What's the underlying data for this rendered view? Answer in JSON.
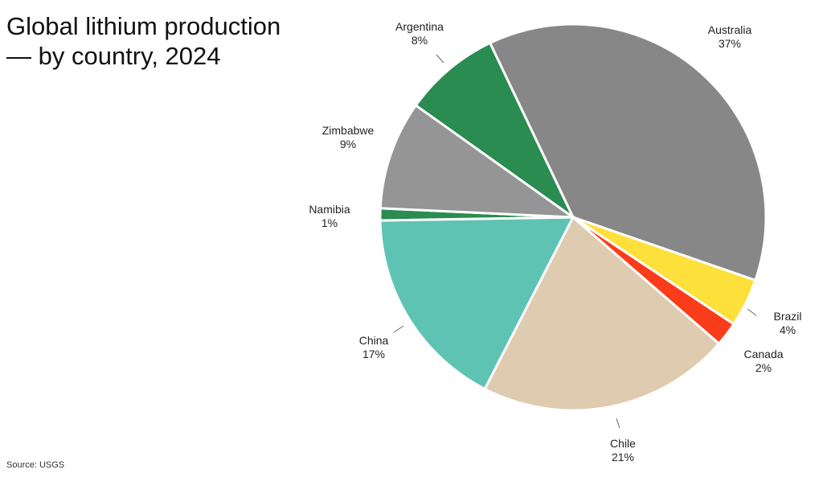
{
  "title_line1": "Global lithium production",
  "title_line2": "— by country, 2024",
  "source": "Source: USGS",
  "chart_data": {
    "type": "pie",
    "title": "Global lithium production — by country, 2024",
    "start_direction": "clockwise",
    "categories": [
      "Australia",
      "Brazil",
      "Canada",
      "Chile",
      "China",
      "Namibia",
      "Zimbabwe",
      "Argentina"
    ],
    "values": [
      37,
      4,
      2,
      21,
      17,
      1,
      9,
      8
    ],
    "labels": [
      "37%",
      "4%",
      "2%",
      "21%",
      "17%",
      "1%",
      "9%",
      "8%"
    ],
    "colors": [
      "#878787",
      "#fde03a",
      "#fb3c1a",
      "#dfcbb0",
      "#5fc3b3",
      "#2a8c50",
      "#959595",
      "#2a8c50"
    ]
  }
}
